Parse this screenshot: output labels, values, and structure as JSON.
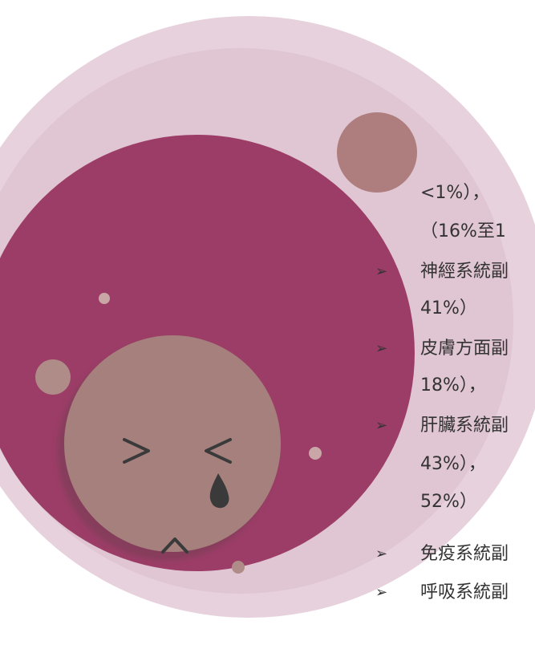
{
  "lines": [
    {
      "text": "<1%），"
    },
    {
      "text": "（16%至1"
    },
    {
      "bullet": "➢",
      "text": "神經系統副"
    },
    {
      "text": "41%）"
    },
    {
      "bullet": "➢",
      "text": "皮膚方面副"
    },
    {
      "text": "18%），"
    },
    {
      "bullet": "➢",
      "text": "肝臟系統副"
    },
    {
      "text": "43%），"
    },
    {
      "text": "52%）"
    },
    {
      "bullet": "➢",
      "text": "免疫系統副"
    },
    {
      "bullet": "➢",
      "text": "呼吸系統副"
    }
  ]
}
